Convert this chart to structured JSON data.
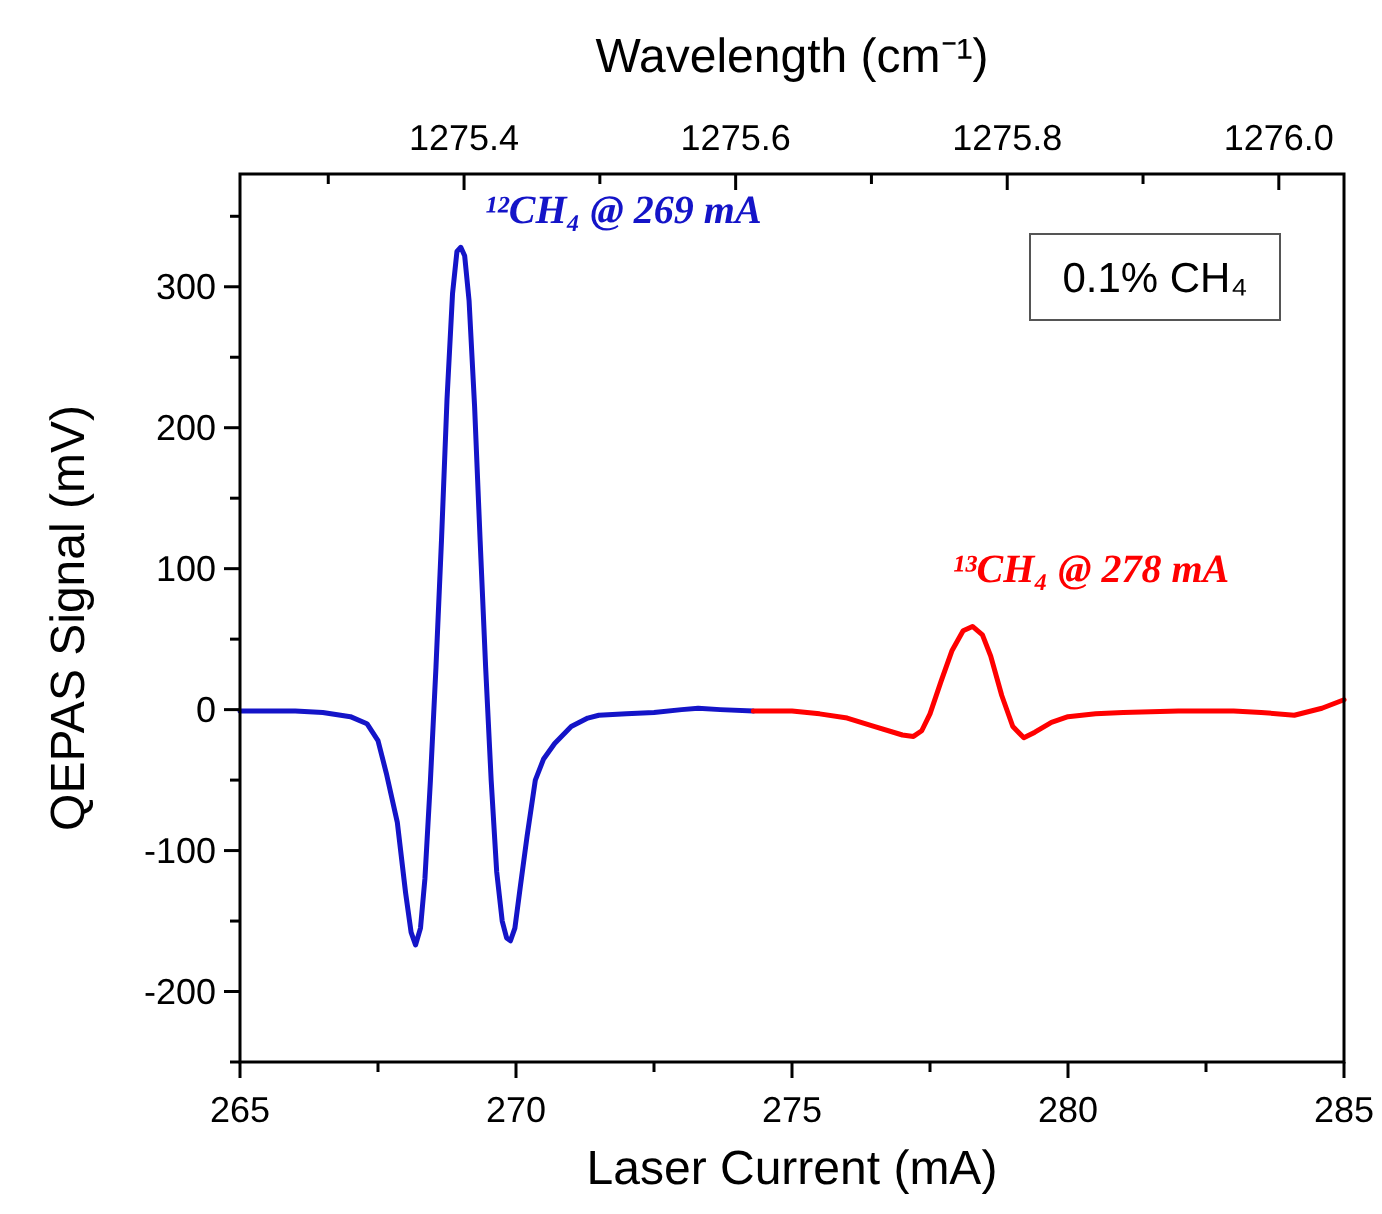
{
  "chart_data": {
    "type": "line",
    "xlabel": "Laser Current (mA)",
    "ylabel": "QEPAS Signal (mV)",
    "x2label": "Wavelength (cm⁻¹)",
    "xlim": [
      265,
      285
    ],
    "xticks": [
      265,
      {
        "value": 267.5,
        "label": null
      },
      270,
      {
        "value": 272.5,
        "label": null
      },
      275,
      {
        "value": 277.5,
        "label": null
      },
      280,
      {
        "value": 282.5,
        "label": null
      },
      285
    ],
    "ylim": [
      -250,
      380
    ],
    "yticks": [
      {
        "value": -250,
        "label": null
      },
      -200,
      {
        "value": -150,
        "label": null
      },
      -100,
      {
        "value": -50,
        "label": null
      },
      0,
      {
        "value": 50,
        "label": null
      },
      100,
      {
        "value": 150,
        "label": null
      },
      200,
      {
        "value": 250,
        "label": null
      },
      300,
      {
        "value": 350,
        "label": null
      }
    ],
    "x2lim": [
      1275.235,
      1276.048
    ],
    "x2ticks": [
      {
        "value": 1275.3,
        "label": null
      },
      1275.4,
      {
        "value": 1275.5,
        "label": null
      },
      1275.6,
      {
        "value": 1275.7,
        "label": null
      },
      1275.8,
      {
        "value": 1275.9,
        "label": null
      },
      {
        "value": 1276.0,
        "label": "1276.0"
      }
    ],
    "grid": false,
    "marker": "none",
    "line_style": "solid",
    "annotations": [
      {
        "text": "¹²CH₄ @ 269 mA",
        "x": 269,
        "y": 328
      },
      {
        "text": "¹³CH₄ @ 278 mA",
        "x": 278.27,
        "y": 59
      },
      "0.1% CH₄"
    ],
    "series": [
      {
        "color": "#1414c8",
        "x": [
          265,
          266,
          266.5,
          267,
          267.3,
          267.5,
          267.65,
          267.85,
          268.0,
          268.1,
          268.18,
          268.27,
          268.35,
          268.45,
          268.55,
          268.65,
          268.75,
          268.85,
          268.93,
          269.0,
          269.07,
          269.15,
          269.25,
          269.35,
          269.45,
          269.55,
          269.65,
          269.75,
          269.83,
          269.9,
          269.98,
          270.08,
          270.2,
          270.35,
          270.5,
          270.7,
          271,
          271.3,
          271.5,
          272,
          272.5,
          273,
          273.3,
          273.7,
          274.3
        ],
        "values": [
          -1,
          -1,
          -2,
          -5,
          -10,
          -22,
          -45,
          -80,
          -130,
          -158,
          -167,
          -155,
          -120,
          -50,
          30,
          120,
          220,
          295,
          325,
          328,
          322,
          290,
          215,
          120,
          30,
          -50,
          -115,
          -150,
          -162,
          -164,
          -155,
          -125,
          -90,
          -50,
          -35,
          -24,
          -12,
          -6,
          -4,
          -3,
          -2,
          0,
          1,
          0,
          -1
        ]
      },
      {
        "color": "#ff0000",
        "x": [
          274.3,
          275,
          275.5,
          276,
          276.5,
          277,
          277.2,
          277.35,
          277.5,
          277.7,
          277.9,
          278.1,
          278.27,
          278.45,
          278.6,
          278.8,
          279.0,
          279.2,
          279.4,
          279.7,
          280,
          280.5,
          281,
          282,
          283,
          283.5,
          284.1,
          284.6,
          285
        ],
        "values": [
          -1,
          -1,
          -3,
          -6,
          -12,
          -18,
          -19,
          -15,
          -3,
          20,
          42,
          56,
          59,
          53,
          38,
          10,
          -12,
          -20,
          -16,
          -9,
          -5,
          -3,
          -2,
          -1,
          -1,
          -2,
          -4,
          1,
          7
        ]
      }
    ]
  }
}
